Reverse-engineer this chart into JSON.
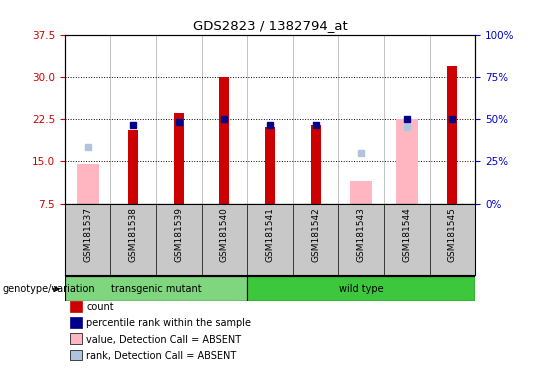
{
  "title": "GDS2823 / 1382794_at",
  "samples": [
    "GSM181537",
    "GSM181538",
    "GSM181539",
    "GSM181540",
    "GSM181541",
    "GSM181542",
    "GSM181543",
    "GSM181544",
    "GSM181545"
  ],
  "groups": [
    "transgenic mutant",
    "transgenic mutant",
    "transgenic mutant",
    "transgenic mutant",
    "wild type",
    "wild type",
    "wild type",
    "wild type",
    "wild type"
  ],
  "group_colors": {
    "transgenic mutant": "#7FD67F",
    "wild type": "#3DC73D"
  },
  "count_values": [
    null,
    20.5,
    23.5,
    30.0,
    21.0,
    21.5,
    null,
    null,
    32.0
  ],
  "rank_values": [
    null,
    21.5,
    22.0,
    22.5,
    21.5,
    21.5,
    null,
    22.5,
    22.5
  ],
  "absent_value": [
    14.5,
    null,
    null,
    null,
    null,
    null,
    11.5,
    22.5,
    null
  ],
  "absent_rank": [
    17.5,
    null,
    null,
    null,
    null,
    null,
    16.5,
    21.0,
    null
  ],
  "ylim_left": [
    7.5,
    37.5
  ],
  "yticks_left": [
    7.5,
    15.0,
    22.5,
    30.0,
    37.5
  ],
  "ylim_right": [
    0,
    100
  ],
  "yticks_right": [
    0,
    25,
    50,
    75,
    100
  ],
  "left_color": "#CC0000",
  "right_color": "#0000CC",
  "genotype_label": "genotype/variation",
  "legend_items": [
    {
      "label": "count",
      "color": "#CC0000"
    },
    {
      "label": "percentile rank within the sample",
      "color": "#00008B"
    },
    {
      "label": "value, Detection Call = ABSENT",
      "color": "#FFB6C1"
    },
    {
      "label": "rank, Detection Call = ABSENT",
      "color": "#B0C4DE"
    }
  ],
  "grid_lines": [
    15.0,
    22.5,
    30.0
  ],
  "label_bg_color": "#C8C8C8"
}
